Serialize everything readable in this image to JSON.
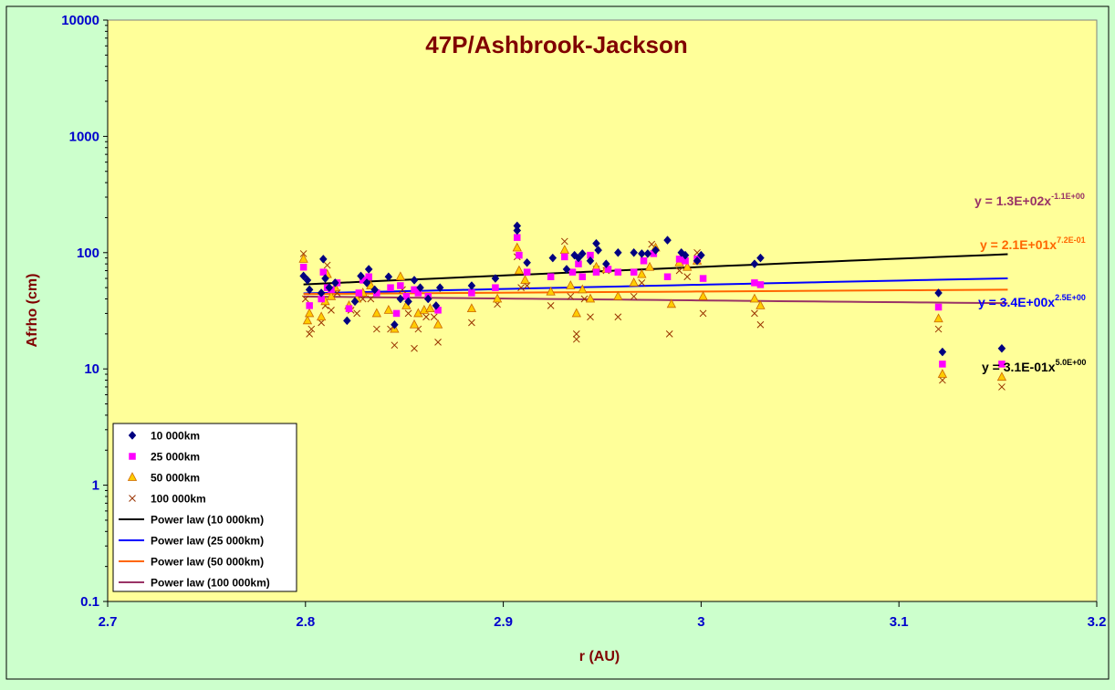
{
  "chart_data": {
    "type": "scatter",
    "title": "47P/Ashbrook-Jackson",
    "xlabel": "r (AU)",
    "ylabel": "Afrho (cm)",
    "xlim": [
      2.7,
      3.2
    ],
    "ylim": [
      0.1,
      10000
    ],
    "yscale": "log",
    "x_ticks": [
      "2.7",
      "2.8",
      "2.9",
      "3",
      "3.1",
      "3.2"
    ],
    "y_ticks": [
      "0.1",
      "1",
      "10",
      "100",
      "1000",
      "10000"
    ],
    "grid": false,
    "legend_position": "bottom-left",
    "colors": {
      "plot_bg": "#ffff99",
      "outer_bg": "#ccffcc",
      "s10": "#000080",
      "s25": "#ff00ff",
      "s50": "#ffcc00",
      "s100": "#993300",
      "fit10": "#000000",
      "fit25": "#0000ff",
      "fit50": "#ff6600",
      "fit100": "#993366"
    },
    "series": [
      {
        "name": "10 000km",
        "marker": "diamond",
        "points": [
          [
            2.799,
            63
          ],
          [
            2.801,
            58
          ],
          [
            2.802,
            48
          ],
          [
            2.808,
            45
          ],
          [
            2.809,
            88
          ],
          [
            2.81,
            60
          ],
          [
            2.812,
            50
          ],
          [
            2.815,
            55
          ],
          [
            2.821,
            26
          ],
          [
            2.825,
            38
          ],
          [
            2.828,
            63
          ],
          [
            2.831,
            55
          ],
          [
            2.832,
            72
          ],
          [
            2.835,
            48
          ],
          [
            2.842,
            62
          ],
          [
            2.845,
            24
          ],
          [
            2.848,
            40
          ],
          [
            2.852,
            38
          ],
          [
            2.855,
            58
          ],
          [
            2.858,
            50
          ],
          [
            2.862,
            40
          ],
          [
            2.866,
            35
          ],
          [
            2.868,
            50
          ],
          [
            2.884,
            52
          ],
          [
            2.896,
            60
          ],
          [
            2.907,
            170
          ],
          [
            2.907,
            155
          ],
          [
            2.912,
            82
          ],
          [
            2.925,
            90
          ],
          [
            2.932,
            72
          ],
          [
            2.936,
            95
          ],
          [
            2.938,
            90
          ],
          [
            2.94,
            98
          ],
          [
            2.944,
            85
          ],
          [
            2.947,
            120
          ],
          [
            2.948,
            105
          ],
          [
            2.952,
            80
          ],
          [
            2.958,
            100
          ],
          [
            2.966,
            100
          ],
          [
            2.97,
            98
          ],
          [
            2.973,
            98
          ],
          [
            2.977,
            105
          ],
          [
            2.983,
            128
          ],
          [
            2.99,
            100
          ],
          [
            2.992,
            95
          ],
          [
            2.998,
            85
          ],
          [
            3.0,
            95
          ],
          [
            3.027,
            80
          ],
          [
            3.03,
            90
          ],
          [
            3.12,
            45
          ],
          [
            3.122,
            14
          ],
          [
            3.152,
            15
          ]
        ]
      },
      {
        "name": "25 000km",
        "marker": "square",
        "points": [
          [
            2.799,
            75
          ],
          [
            2.802,
            35
          ],
          [
            2.808,
            40
          ],
          [
            2.809,
            68
          ],
          [
            2.811,
            50
          ],
          [
            2.813,
            48
          ],
          [
            2.816,
            55
          ],
          [
            2.822,
            33
          ],
          [
            2.827,
            45
          ],
          [
            2.829,
            58
          ],
          [
            2.832,
            62
          ],
          [
            2.836,
            45
          ],
          [
            2.843,
            50
          ],
          [
            2.846,
            30
          ],
          [
            2.848,
            52
          ],
          [
            2.851,
            42
          ],
          [
            2.855,
            48
          ],
          [
            2.857,
            45
          ],
          [
            2.862,
            42
          ],
          [
            2.867,
            32
          ],
          [
            2.884,
            45
          ],
          [
            2.896,
            50
          ],
          [
            2.907,
            135
          ],
          [
            2.908,
            95
          ],
          [
            2.912,
            68
          ],
          [
            2.924,
            62
          ],
          [
            2.931,
            92
          ],
          [
            2.935,
            68
          ],
          [
            2.938,
            80
          ],
          [
            2.94,
            62
          ],
          [
            2.944,
            95
          ],
          [
            2.947,
            68
          ],
          [
            2.953,
            72
          ],
          [
            2.958,
            68
          ],
          [
            2.966,
            68
          ],
          [
            2.971,
            85
          ],
          [
            2.976,
            98
          ],
          [
            2.983,
            62
          ],
          [
            2.989,
            88
          ],
          [
            2.992,
            85
          ],
          [
            2.998,
            88
          ],
          [
            3.001,
            60
          ],
          [
            3.027,
            55
          ],
          [
            3.03,
            53
          ],
          [
            3.12,
            34
          ],
          [
            3.122,
            11
          ],
          [
            3.152,
            11
          ]
        ]
      },
      {
        "name": "50 000km",
        "marker": "triangle",
        "points": [
          [
            2.799,
            88
          ],
          [
            2.801,
            26
          ],
          [
            2.802,
            30
          ],
          [
            2.808,
            28
          ],
          [
            2.81,
            38
          ],
          [
            2.811,
            65
          ],
          [
            2.813,
            42
          ],
          [
            2.815,
            50
          ],
          [
            2.822,
            35
          ],
          [
            2.826,
            40
          ],
          [
            2.829,
            45
          ],
          [
            2.833,
            52
          ],
          [
            2.836,
            30
          ],
          [
            2.842,
            32
          ],
          [
            2.845,
            22
          ],
          [
            2.848,
            62
          ],
          [
            2.851,
            35
          ],
          [
            2.855,
            24
          ],
          [
            2.857,
            30
          ],
          [
            2.86,
            32
          ],
          [
            2.863,
            33
          ],
          [
            2.867,
            24
          ],
          [
            2.884,
            33
          ],
          [
            2.897,
            40
          ],
          [
            2.907,
            110
          ],
          [
            2.908,
            70
          ],
          [
            2.911,
            58
          ],
          [
            2.924,
            46
          ],
          [
            2.931,
            105
          ],
          [
            2.934,
            52
          ],
          [
            2.937,
            30
          ],
          [
            2.94,
            48
          ],
          [
            2.944,
            40
          ],
          [
            2.947,
            75
          ],
          [
            2.952,
            72
          ],
          [
            2.958,
            42
          ],
          [
            2.966,
            55
          ],
          [
            2.97,
            65
          ],
          [
            2.974,
            75
          ],
          [
            2.977,
            110
          ],
          [
            2.985,
            36
          ],
          [
            2.989,
            82
          ],
          [
            2.993,
            75
          ],
          [
            2.998,
            85
          ],
          [
            3.001,
            42
          ],
          [
            3.027,
            40
          ],
          [
            3.03,
            35
          ],
          [
            3.12,
            27
          ],
          [
            3.122,
            9
          ],
          [
            3.152,
            8.5
          ]
        ]
      },
      {
        "name": "100 000km",
        "marker": "x",
        "points": [
          [
            2.799,
            98
          ],
          [
            2.8,
            40
          ],
          [
            2.802,
            20
          ],
          [
            2.803,
            22
          ],
          [
            2.808,
            25
          ],
          [
            2.81,
            35
          ],
          [
            2.811,
            78
          ],
          [
            2.813,
            32
          ],
          [
            2.816,
            45
          ],
          [
            2.823,
            32
          ],
          [
            2.826,
            30
          ],
          [
            2.829,
            40
          ],
          [
            2.833,
            40
          ],
          [
            2.836,
            22
          ],
          [
            2.843,
            22
          ],
          [
            2.845,
            16
          ],
          [
            2.849,
            48
          ],
          [
            2.852,
            30
          ],
          [
            2.855,
            15
          ],
          [
            2.857,
            22
          ],
          [
            2.861,
            28
          ],
          [
            2.865,
            28
          ],
          [
            2.867,
            17
          ],
          [
            2.884,
            25
          ],
          [
            2.897,
            36
          ],
          [
            2.907,
            92
          ],
          [
            2.909,
            50
          ],
          [
            2.912,
            52
          ],
          [
            2.924,
            35
          ],
          [
            2.931,
            125
          ],
          [
            2.934,
            42
          ],
          [
            2.937,
            20
          ],
          [
            2.937,
            18
          ],
          [
            2.941,
            40
          ],
          [
            2.944,
            28
          ],
          [
            2.947,
            72
          ],
          [
            2.952,
            70
          ],
          [
            2.958,
            28
          ],
          [
            2.966,
            42
          ],
          [
            2.97,
            55
          ],
          [
            2.975,
            118
          ],
          [
            2.984,
            20
          ],
          [
            2.989,
            70
          ],
          [
            2.993,
            62
          ],
          [
            2.998,
            100
          ],
          [
            3.001,
            30
          ],
          [
            3.027,
            30
          ],
          [
            3.03,
            24
          ],
          [
            3.12,
            22
          ],
          [
            3.122,
            8
          ],
          [
            3.152,
            7
          ]
        ]
      }
    ],
    "fits": [
      {
        "name": "Power law (10 000km)",
        "coef": 0.31,
        "exp": 5.0,
        "eq_main": "y = 3.1E-01x",
        "eq_sup": "5.0E+00",
        "x_range": [
          2.799,
          3.155
        ]
      },
      {
        "name": "Power law (25 000km)",
        "coef": 3.4,
        "exp": 2.5,
        "eq_main": "y = 3.4E+00x",
        "eq_sup": "2.5E+00",
        "x_range": [
          2.799,
          3.155
        ]
      },
      {
        "name": "Power law (50 000km)",
        "coef": 21,
        "exp": 0.72,
        "eq_main": "y = 2.1E+01x",
        "eq_sup": "7.2E-01",
        "x_range": [
          2.799,
          3.155
        ]
      },
      {
        "name": "Power law (100 000km)",
        "coef": 130,
        "exp": -1.1,
        "eq_main": "y = 1.3E+02x",
        "eq_sup": "-1.1E+00",
        "x_range": [
          2.799,
          3.155
        ]
      }
    ]
  }
}
